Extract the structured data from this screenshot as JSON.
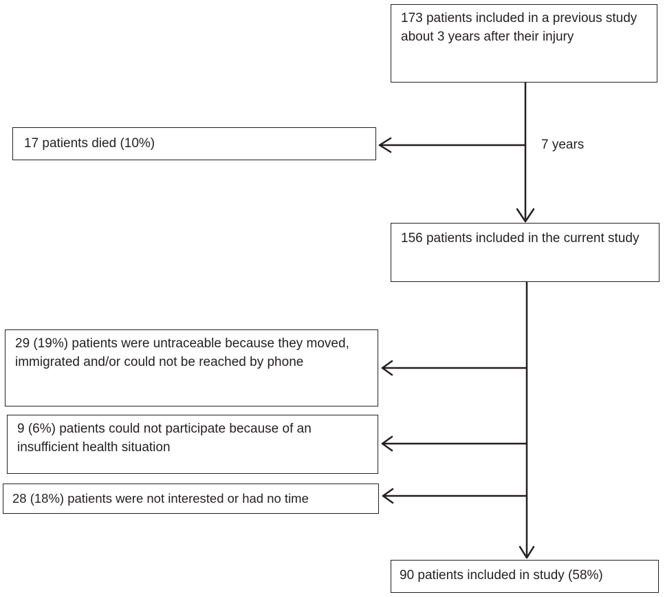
{
  "flowchart": {
    "start": "173 patients included in a previous study about 3 years after their injury",
    "exclusion_died": "17 patients died (10%)",
    "interval_label": "7 years",
    "current_study": "156 patients included  in the current study",
    "exclusion_untraceable": "29 (19%) patients were untraceable because they moved, immigrated and/or could not be reached by phone",
    "exclusion_health": "9 (6%) patients could not participate because of  an insufficient health situation",
    "exclusion_not_interested": "28 (18%) patients were not interested or had no time",
    "final": "90 patients included in study (58%)"
  },
  "colors": {
    "line": "#231f20",
    "text": "#231f20",
    "background": "#ffffff"
  }
}
